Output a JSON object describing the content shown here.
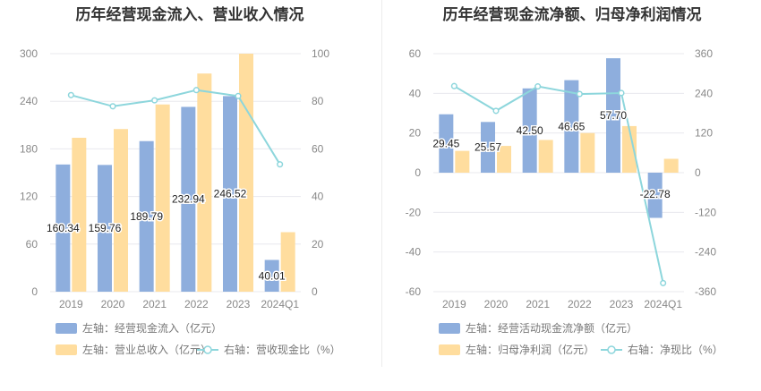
{
  "colors": {
    "bar_primary": "#8eaedd",
    "bar_secondary": "#ffdd9e",
    "line": "#8dd6dc",
    "grid": "#e8e8ee",
    "axis_text": "#888888"
  },
  "left": {
    "title": "历年经营现金流入、营业收入情况",
    "legend": [
      "左轴：经营现金流入（亿元）",
      "左轴：营业总收入（亿元）",
      "右轴：营收现金比（%）"
    ],
    "left_ticks": [
      "300",
      "240",
      "180",
      "120",
      "60",
      "0"
    ],
    "right_ticks": [
      "100",
      "80",
      "60",
      "40",
      "20",
      "0"
    ]
  },
  "right": {
    "title": "历年经营现金流净额、归母净利润情况",
    "legend": [
      "左轴：经营活动现金流净额（亿元）",
      "左轴：归母净利润（亿元）",
      "右轴：净现比（%）"
    ],
    "left_ticks": [
      "60",
      "40",
      "20",
      "0",
      "-20",
      "-40",
      "-60"
    ],
    "right_ticks": [
      "360",
      "240",
      "120",
      "0",
      "-120",
      "-240",
      "-360"
    ]
  },
  "chart_data": [
    {
      "type": "bar",
      "title": "历年经营现金流入、营业收入情况",
      "categories": [
        "2019",
        "2020",
        "2021",
        "2022",
        "2023",
        "2024Q1"
      ],
      "series": [
        {
          "name": "左轴：经营现金流入（亿元）",
          "axis": "left",
          "type": "bar",
          "values": [
            160.34,
            159.76,
            189.79,
            232.94,
            246.52,
            40.01
          ],
          "labels": [
            "160.34",
            "159.76",
            "189.79",
            "232.94",
            "246.52",
            "40.01"
          ]
        },
        {
          "name": "左轴：营业总收入（亿元）",
          "axis": "left",
          "type": "bar",
          "values": [
            194,
            205,
            236,
            275,
            300,
            75
          ]
        },
        {
          "name": "右轴：营收现金比（%）",
          "axis": "right",
          "type": "line",
          "values": [
            82.6,
            77.9,
            80.4,
            84.7,
            82.2,
            53.5
          ]
        }
      ],
      "ylim_left": [
        0,
        300
      ],
      "ylim_right": [
        0,
        100
      ]
    },
    {
      "type": "bar",
      "title": "历年经营现金流净额、归母净利润情况",
      "categories": [
        "2019",
        "2020",
        "2021",
        "2022",
        "2023",
        "2024Q1"
      ],
      "series": [
        {
          "name": "左轴：经营活动现金流净额（亿元）",
          "axis": "left",
          "type": "bar",
          "values": [
            29.45,
            25.57,
            42.5,
            46.65,
            57.7,
            -22.78
          ],
          "labels": [
            "29.45",
            "25.57",
            "42.50",
            "46.65",
            "57.70",
            "-22.78"
          ]
        },
        {
          "name": "左轴：归母净利润（亿元）",
          "axis": "left",
          "type": "bar",
          "values": [
            11,
            13.5,
            16.5,
            20,
            23.5,
            7
          ]
        },
        {
          "name": "右轴：净现比（%）",
          "axis": "right",
          "type": "line",
          "values": [
            262,
            187,
            261,
            238,
            241,
            -334
          ]
        }
      ],
      "ylim_left": [
        -60,
        60
      ],
      "ylim_right": [
        -360,
        360
      ]
    }
  ]
}
